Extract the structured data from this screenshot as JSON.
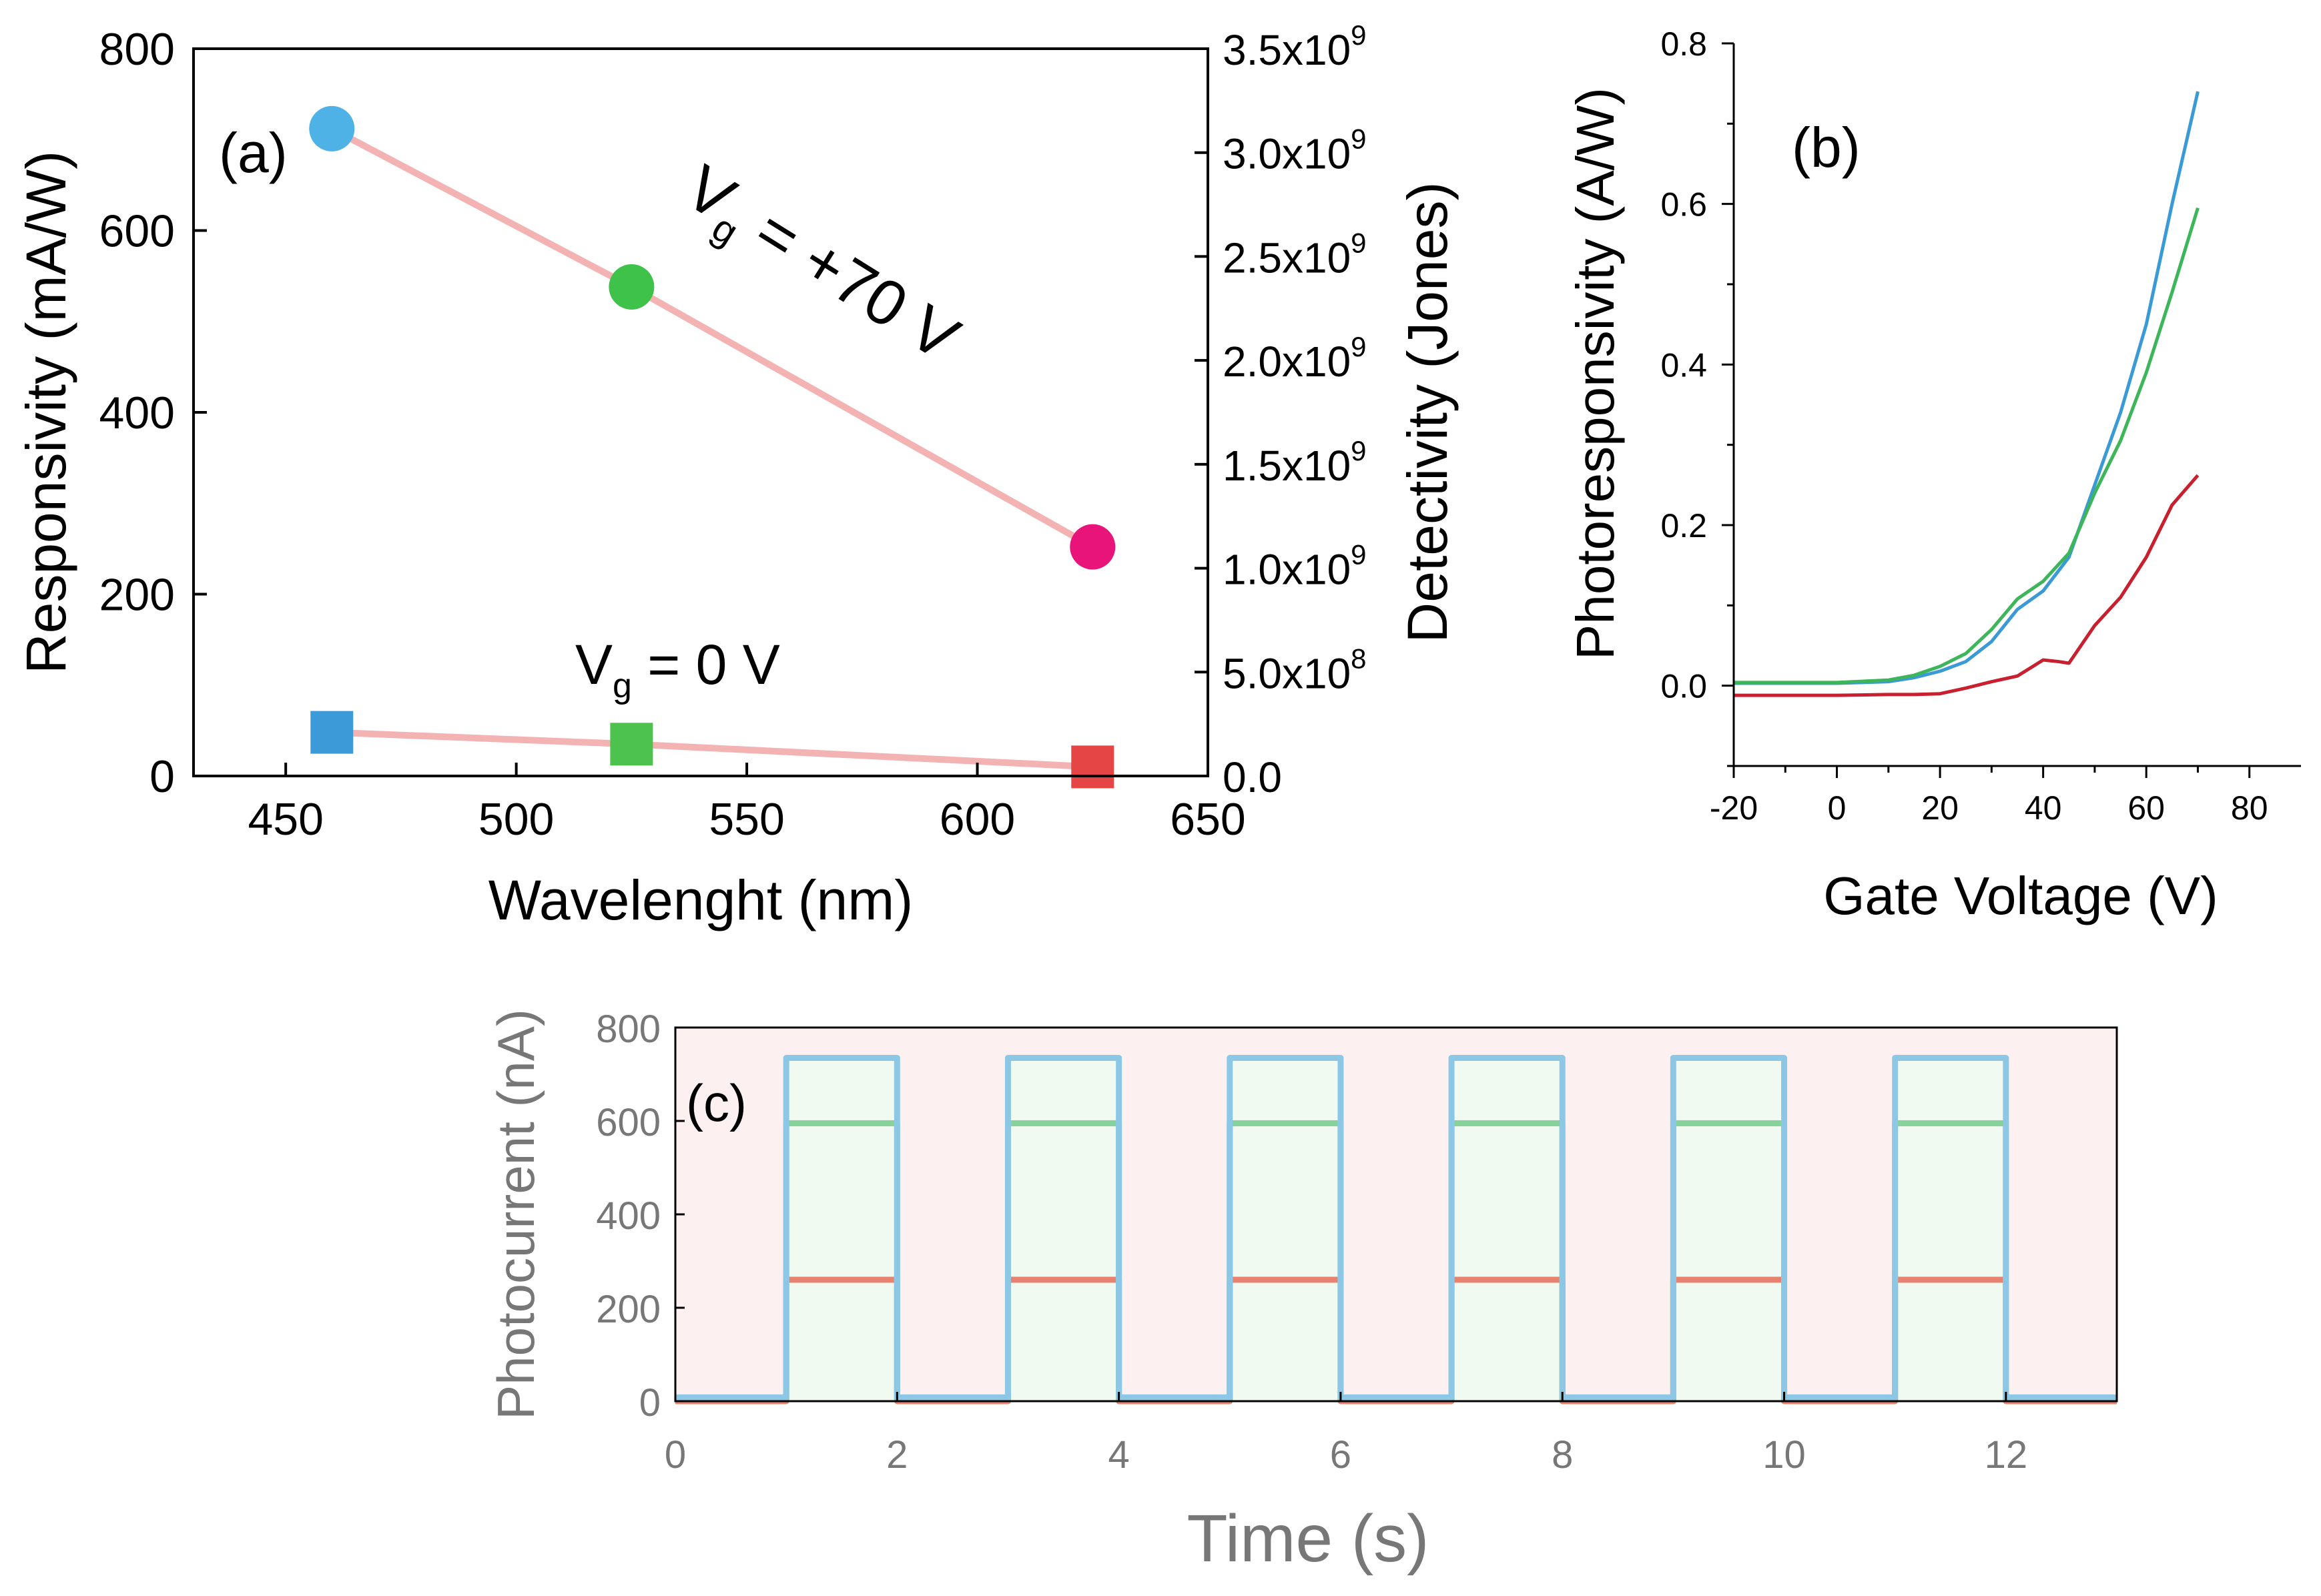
{
  "colors": {
    "blue": "#4fb2e6",
    "green": "#3ec24a",
    "magenta": "#e8147a",
    "sq_blue": "#3d9ad8",
    "sq_green": "#4dc24f",
    "sq_red": "#e54545",
    "link": "#f4b3b3",
    "b_blue": "#3a9ad6",
    "b_green": "#3db55a",
    "b_red": "#c8202e",
    "c_blue": "#8cc8e6",
    "c_green": "#86d29a",
    "c_red": "#e8826e",
    "c_bg": "#fcf0f0",
    "c_bg_on": "#f1faf1",
    "c_grey": "#777777"
  },
  "chart_data": [
    {
      "id": "a",
      "type": "scatter",
      "panel_label": "(a)",
      "xlabel": "Wavelenght (nm)",
      "ylabel": "Responsivity (mA/W)",
      "y2label": "Detectivity (Jones)",
      "xlim": [
        430,
        650
      ],
      "ylim": [
        0,
        800
      ],
      "y2lim": [
        0,
        3500000000
      ],
      "xticks": [
        450,
        500,
        550,
        600,
        650
      ],
      "yticks": [
        0,
        200,
        400,
        600,
        800
      ],
      "y2ticks": [
        {
          "value": 0,
          "mantissa": "0.0",
          "exp": ""
        },
        {
          "value": 500000000,
          "mantissa": "5.0x10",
          "exp": "8"
        },
        {
          "value": 1000000000,
          "mantissa": "1.0x10",
          "exp": "9"
        },
        {
          "value": 1500000000,
          "mantissa": "1.5x10",
          "exp": "9"
        },
        {
          "value": 2000000000,
          "mantissa": "2.0x10",
          "exp": "9"
        },
        {
          "value": 2500000000,
          "mantissa": "2.5x10",
          "exp": "9"
        },
        {
          "value": 3000000000,
          "mantissa": "3.0x10",
          "exp": "9"
        },
        {
          "value": 3500000000,
          "mantissa": "3.5x10",
          "exp": "9"
        }
      ],
      "series": [
        {
          "name": "Vg = +70 V",
          "marker": "circle",
          "x": [
            460,
            525,
            625
          ],
          "y": [
            712,
            538,
            252
          ],
          "colors": [
            "blue",
            "green",
            "magenta"
          ]
        },
        {
          "name": "Vg = 0 V",
          "marker": "square",
          "x": [
            460,
            525,
            625
          ],
          "y": [
            48,
            35,
            10
          ],
          "colors": [
            "sq_blue",
            "sq_green",
            "sq_red"
          ]
        }
      ],
      "annotations": [
        {
          "base": "V",
          "sub": "g",
          "text": " = +70 V"
        },
        {
          "base": "V",
          "sub": "g",
          "text": " = 0 V"
        }
      ]
    },
    {
      "id": "b",
      "type": "line",
      "panel_label": "(b)",
      "xlabel": "Gate Voltage (V)",
      "ylabel": "Photoresponsivity (A/W)",
      "xlim": [
        -20,
        90
      ],
      "ylim": [
        -0.1,
        0.8
      ],
      "xticks": [
        -20,
        0,
        20,
        40,
        60,
        80
      ],
      "yticks": [
        "0.0",
        "0.2",
        "0.4",
        "0.6",
        "0.8"
      ],
      "series": [
        {
          "name": "blue",
          "x": [
            -20,
            -10,
            0,
            10,
            15,
            20,
            25,
            30,
            35,
            40,
            45,
            50,
            55,
            60,
            65,
            70
          ],
          "y": [
            0.003,
            0.003,
            0.003,
            0.005,
            0.01,
            0.018,
            0.03,
            0.055,
            0.095,
            0.118,
            0.16,
            0.25,
            0.34,
            0.45,
            0.6,
            0.74
          ]
        },
        {
          "name": "green",
          "x": [
            -20,
            -10,
            0,
            10,
            15,
            20,
            25,
            30,
            35,
            40,
            45,
            50,
            55,
            60,
            65,
            70
          ],
          "y": [
            0.004,
            0.004,
            0.004,
            0.007,
            0.013,
            0.024,
            0.04,
            0.07,
            0.108,
            0.13,
            0.165,
            0.24,
            0.305,
            0.39,
            0.49,
            0.595
          ]
        },
        {
          "name": "red",
          "x": [
            -20,
            -10,
            0,
            10,
            15,
            20,
            25,
            30,
            35,
            37,
            40,
            43,
            45,
            50,
            55,
            60,
            65,
            70
          ],
          "y": [
            -0.012,
            -0.012,
            -0.012,
            -0.011,
            -0.011,
            -0.01,
            -0.003,
            0.005,
            0.012,
            0.02,
            0.032,
            0.03,
            0.028,
            0.075,
            0.11,
            0.16,
            0.225,
            0.262
          ]
        }
      ]
    },
    {
      "id": "c",
      "type": "line",
      "panel_label": "(c)",
      "xlabel": "Time (s)",
      "ylabel": "Photocurrent (nA)",
      "xlim": [
        0,
        13
      ],
      "ylim": [
        0,
        800
      ],
      "xticks": [
        0,
        2,
        4,
        6,
        8,
        10,
        12
      ],
      "yticks": [
        0,
        200,
        400,
        600,
        800
      ],
      "on_intervals": [
        [
          1,
          2
        ],
        [
          3,
          4
        ],
        [
          5,
          6
        ],
        [
          7,
          8
        ],
        [
          9,
          10
        ],
        [
          11,
          12
        ]
      ],
      "series": [
        {
          "name": "blue",
          "on": 735,
          "off": 8
        },
        {
          "name": "green",
          "on": 595,
          "off": 4
        },
        {
          "name": "red",
          "on": 260,
          "off": 0
        }
      ]
    }
  ]
}
